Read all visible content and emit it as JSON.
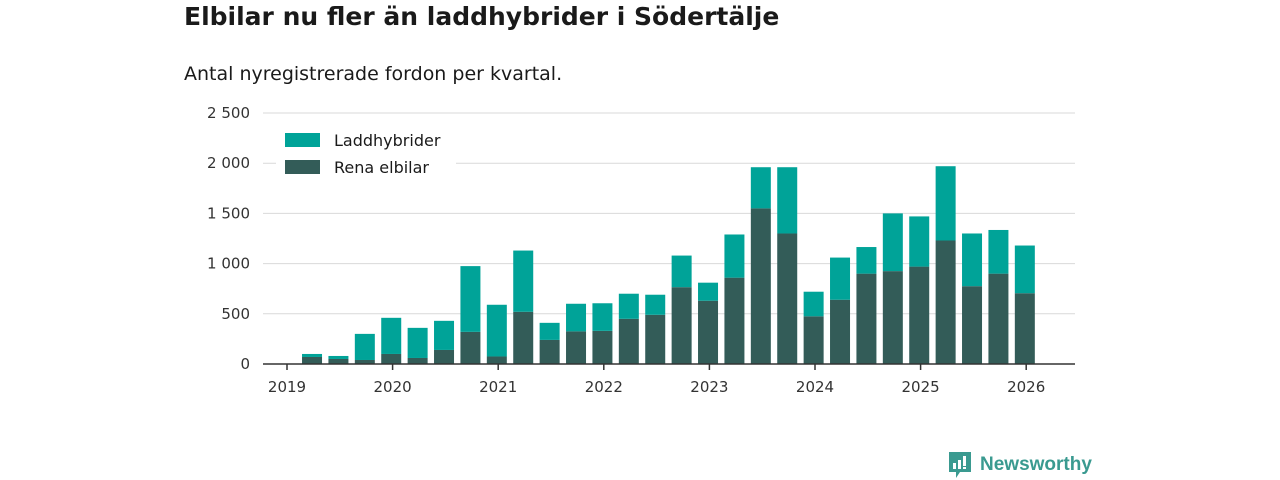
{
  "chart_data": {
    "type": "bar",
    "stacked": true,
    "title": "Elbilar nu fler än laddhybrider i Södertälje",
    "subtitle": "Antal nyregistrerade fordon per kvartal.",
    "xlabel": "",
    "ylabel": "",
    "ylim": [
      0,
      2500
    ],
    "yticks": [
      0,
      500,
      1000,
      1500,
      2000,
      2500
    ],
    "ytick_labels": [
      "0",
      "500",
      "1 000",
      "1 500",
      "2 000",
      "2 500"
    ],
    "xticks": [
      "2019",
      "2020",
      "2021",
      "2022",
      "2023",
      "2024",
      "2025",
      "2026"
    ],
    "legend_position": "top-left",
    "categories": [
      "2019Q1",
      "2019Q2",
      "2019Q3",
      "2019Q4",
      "2020Q1",
      "2020Q2",
      "2020Q3",
      "2020Q4",
      "2021Q1",
      "2021Q2",
      "2021Q3",
      "2021Q4",
      "2022Q1",
      "2022Q2",
      "2022Q3",
      "2022Q4",
      "2023Q1",
      "2023Q2",
      "2023Q3",
      "2023Q4",
      "2024Q1",
      "2024Q2",
      "2024Q3",
      "2024Q4",
      "2025Q1",
      "2025Q2",
      "2025Q3",
      "2025Q4"
    ],
    "series": [
      {
        "name": "Rena elbilar",
        "color": "#335c58",
        "values": [
          70,
          50,
          40,
          100,
          60,
          140,
          320,
          75,
          520,
          240,
          325,
          330,
          450,
          490,
          765,
          630,
          860,
          1550,
          1300,
          475,
          640,
          900,
          925,
          970,
          1230,
          775,
          900,
          705
        ]
      },
      {
        "name": "Laddhybrider",
        "color": "#00a398",
        "values": [
          30,
          30,
          260,
          360,
          300,
          290,
          655,
          515,
          610,
          170,
          275,
          275,
          250,
          200,
          315,
          180,
          430,
          410,
          660,
          245,
          420,
          265,
          575,
          500,
          740,
          525,
          435,
          475
        ]
      }
    ],
    "grid": true
  },
  "brand": {
    "name": "Newsworthy"
  }
}
